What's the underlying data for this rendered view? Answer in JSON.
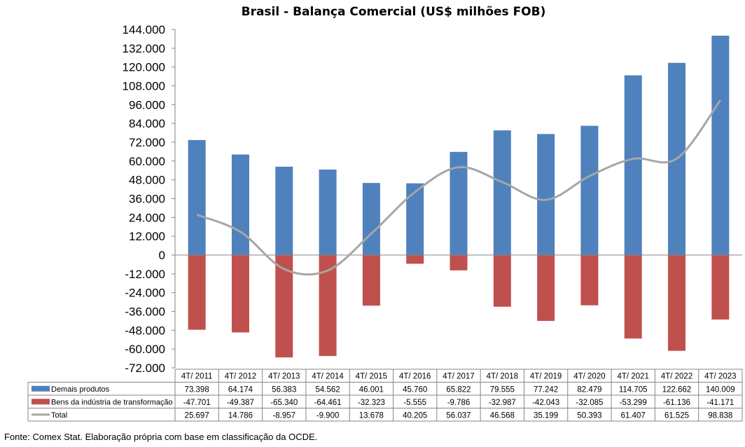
{
  "chart_data": {
    "type": "bar",
    "title": "Brasil - Balança Comercial (US$ milhões FOB)",
    "categories": [
      "4T/ 2011",
      "4T/ 2012",
      "4T/ 2013",
      "4T/ 2014",
      "4T/ 2015",
      "4T/ 2016",
      "4T/ 2017",
      "4T/ 2018",
      "4T/ 2019",
      "4T/ 2020",
      "4T/ 2021",
      "4T/ 2022",
      "4T/ 2023"
    ],
    "series": [
      {
        "name": "Demais produtos",
        "kind": "bar",
        "color": "#4f81bd",
        "values": [
          73398,
          64174,
          56383,
          54562,
          46001,
          45760,
          65822,
          79555,
          77242,
          82479,
          114705,
          122662,
          140009
        ],
        "labels": [
          "73.398",
          "64.174",
          "56.383",
          "54.562",
          "46.001",
          "45.760",
          "65.822",
          "79.555",
          "77.242",
          "82.479",
          "114.705",
          "122.662",
          "140.009"
        ]
      },
      {
        "name": "Bens da indústria de transformação",
        "kind": "bar",
        "color": "#c0504d",
        "values": [
          -47701,
          -49387,
          -65340,
          -64461,
          -32323,
          -5555,
          -9786,
          -32987,
          -42043,
          -32085,
          -53299,
          -61136,
          -41171
        ],
        "labels": [
          "-47.701",
          "-49.387",
          "-65.340",
          "-64.461",
          "-32.323",
          "-5.555",
          "-9.786",
          "-32.987",
          "-42.043",
          "-32.085",
          "-53.299",
          "-61.136",
          "-41.171"
        ]
      },
      {
        "name": "Total",
        "kind": "line",
        "color": "#a6a6a6",
        "values": [
          25697,
          14786,
          -8957,
          -9900,
          13678,
          40205,
          56037,
          46568,
          35199,
          50393,
          61407,
          61525,
          98838
        ],
        "labels": [
          "25.697",
          "14.786",
          "-8.957",
          "-9.900",
          "13.678",
          "40.205",
          "56.037",
          "46.568",
          "35.199",
          "50.393",
          "61.407",
          "61.525",
          "98.838"
        ]
      }
    ],
    "ylim": [
      -72000,
      144000
    ],
    "yticks": [
      -72000,
      -60000,
      -48000,
      -36000,
      -24000,
      -12000,
      0,
      12000,
      24000,
      36000,
      48000,
      60000,
      72000,
      84000,
      96000,
      108000,
      120000,
      132000,
      144000
    ],
    "ytick_labels": [
      "-72.000",
      "-60.000",
      "-48.000",
      "-36.000",
      "-24.000",
      "-12.000",
      "0",
      "12.000",
      "24.000",
      "36.000",
      "48.000",
      "60.000",
      "72.000",
      "84.000",
      "96.000",
      "108.000",
      "120.000",
      "132.000",
      "144.000"
    ],
    "grid": false,
    "legend": "data-table-below"
  },
  "source_note": "Fonte: Comex Stat. Elaboração própria com base em classificação da OCDE."
}
